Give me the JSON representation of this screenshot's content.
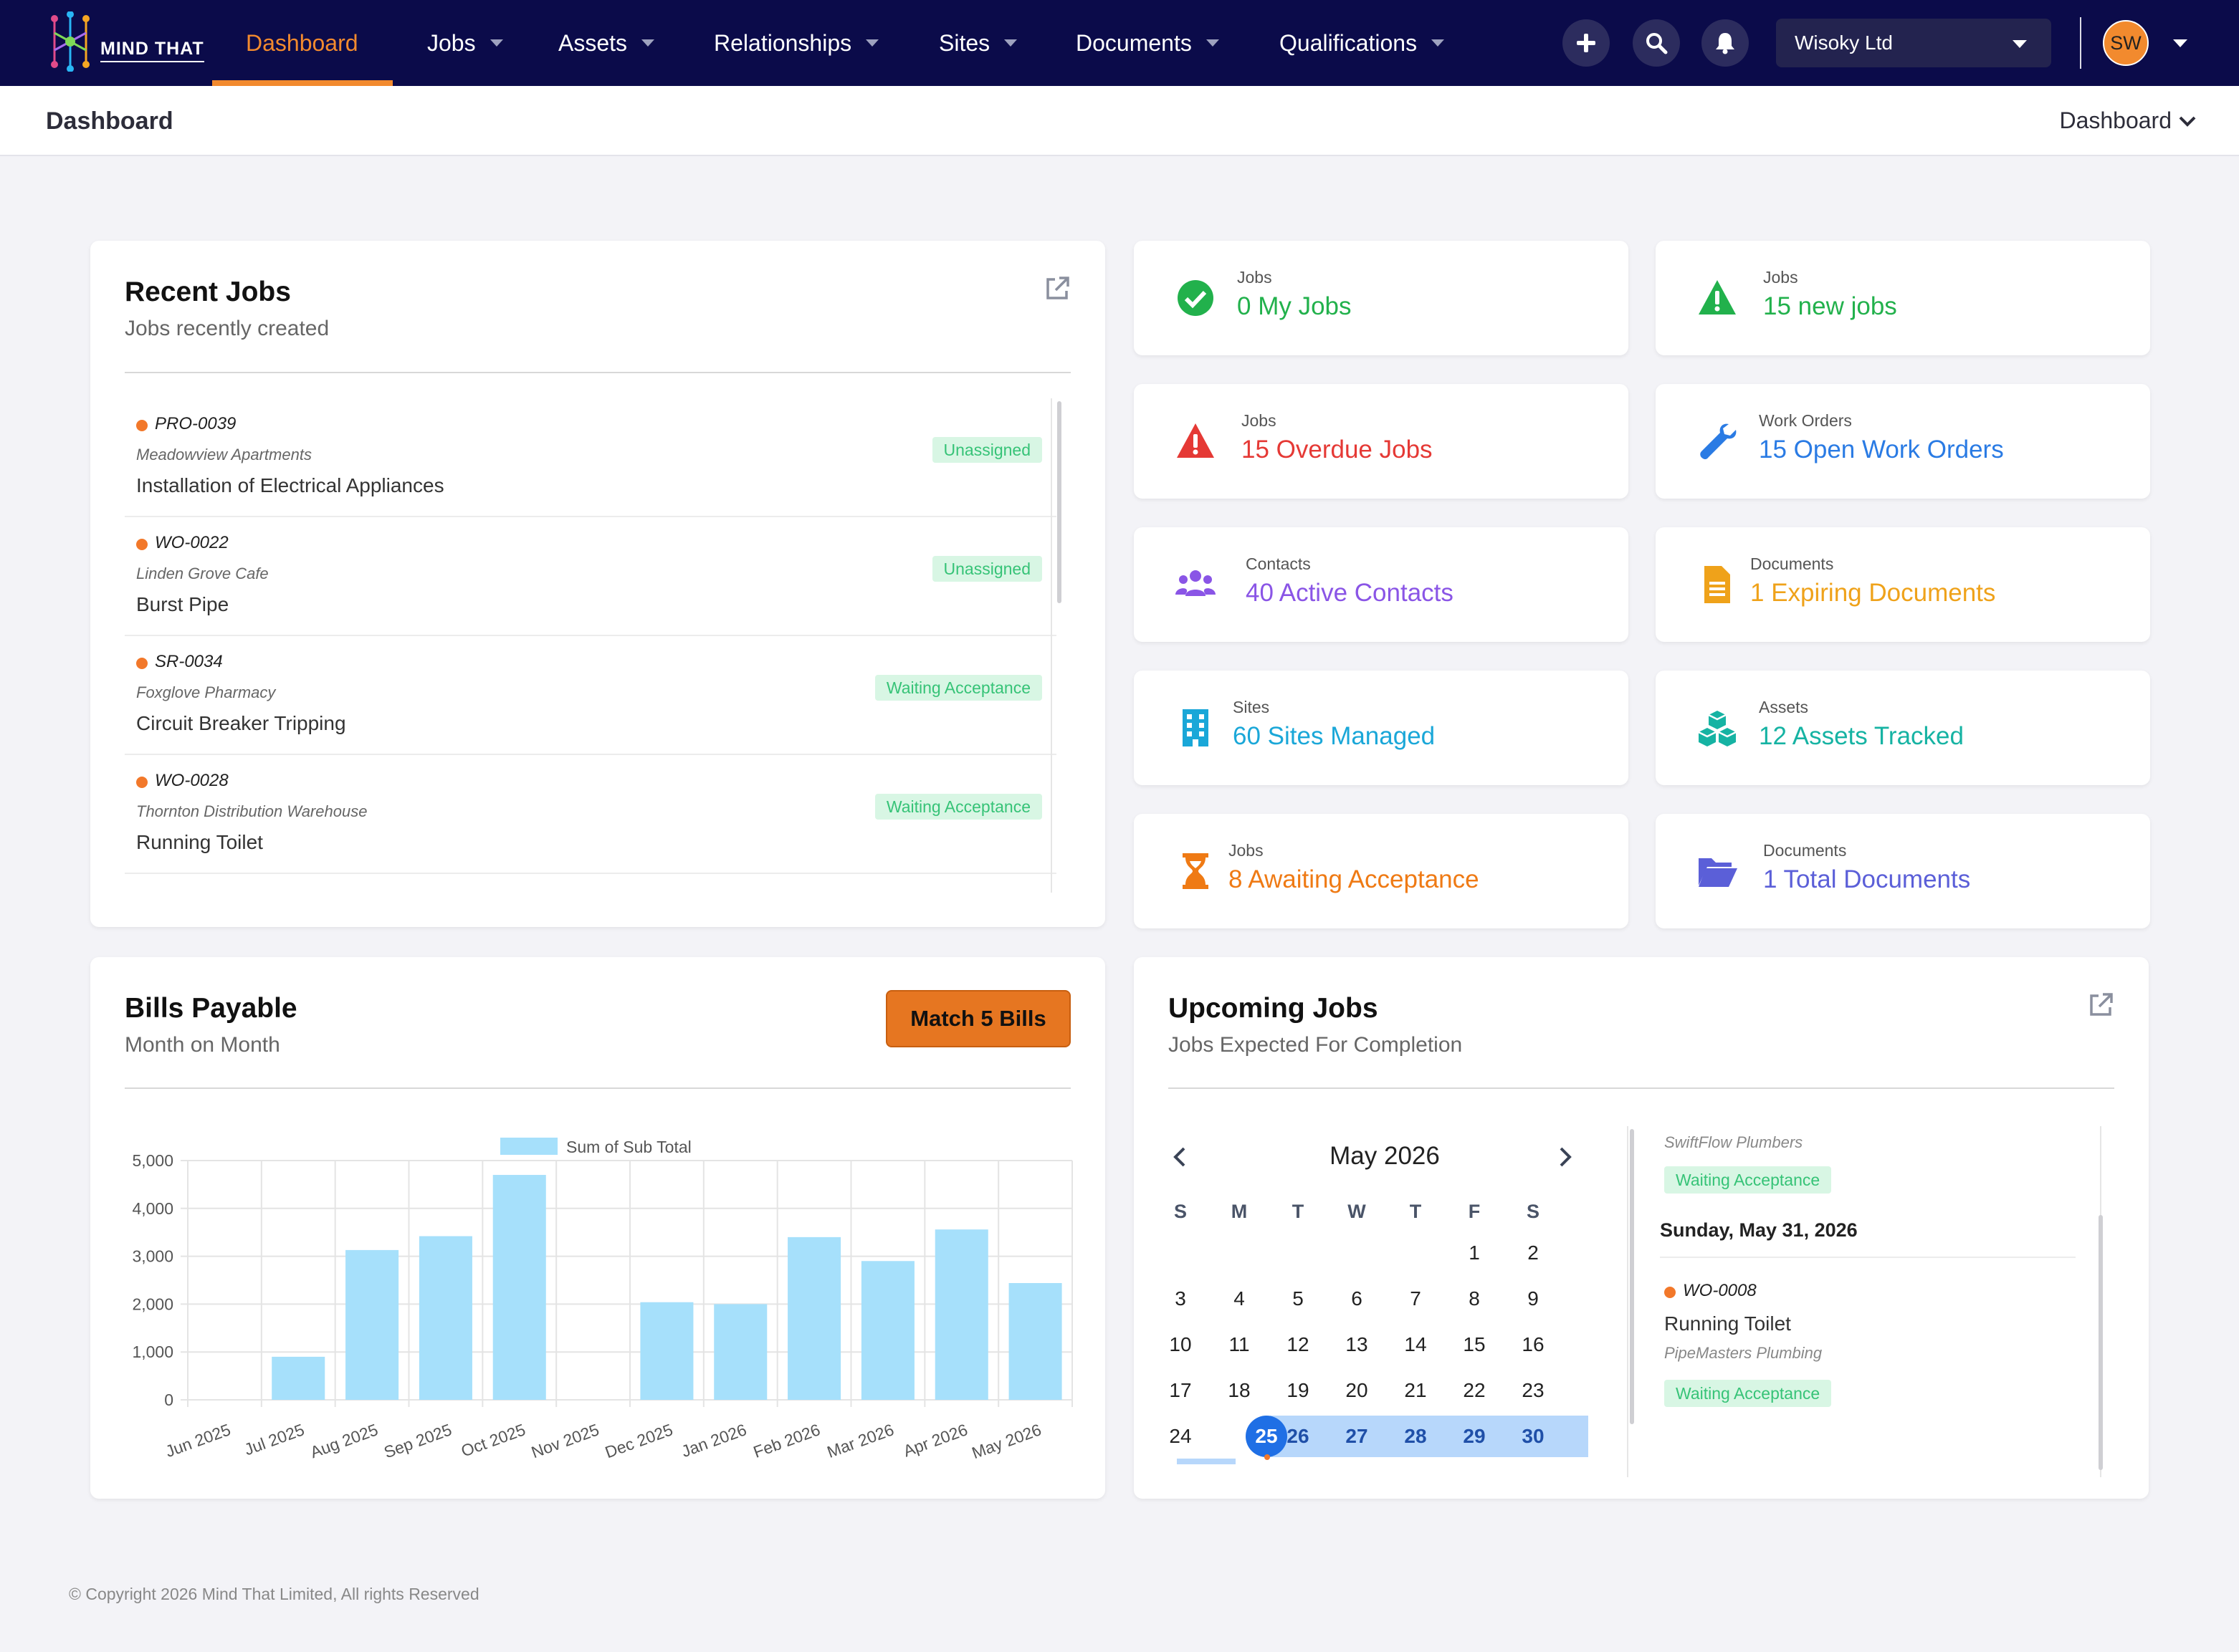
{
  "brand": {
    "name": "MIND THAT"
  },
  "nav": {
    "items": [
      {
        "label": "Dashboard",
        "active": true
      },
      {
        "label": "Jobs"
      },
      {
        "label": "Assets"
      },
      {
        "label": "Relationships"
      },
      {
        "label": "Sites"
      },
      {
        "label": "Documents"
      },
      {
        "label": "Qualifications"
      }
    ],
    "icons": [
      "plus-icon",
      "search-icon",
      "bell-icon"
    ],
    "company": "Wisoky Ltd",
    "user_initials": "SW"
  },
  "subbar": {
    "title": "Dashboard",
    "menu_label": "Dashboard"
  },
  "recent_jobs": {
    "title": "Recent Jobs",
    "subtitle": "Jobs recently created",
    "items": [
      {
        "code": "PRO-0039",
        "site": "Meadowview Apartments",
        "title": "Installation of Electrical Appliances",
        "status": "Unassigned"
      },
      {
        "code": "WO-0022",
        "site": "Linden Grove Cafe",
        "title": "Burst Pipe",
        "status": "Unassigned"
      },
      {
        "code": "SR-0034",
        "site": "Foxglove Pharmacy",
        "title": "Circuit Breaker Tripping",
        "status": "Waiting Acceptance"
      },
      {
        "code": "WO-0028",
        "site": "Thornton Distribution Warehouse",
        "title": "Running Toilet",
        "status": "Waiting Acceptance"
      }
    ]
  },
  "stats": [
    {
      "label": "Jobs",
      "value": "0 My Jobs",
      "icon": "check-circle-icon",
      "color": "#22b14c"
    },
    {
      "label": "Jobs",
      "value": "15 new jobs",
      "icon": "warning-icon",
      "color": "#22b14c"
    },
    {
      "label": "Jobs",
      "value": "15 Overdue Jobs",
      "icon": "warning-icon",
      "color": "#e53935"
    },
    {
      "label": "Work Orders",
      "value": "15 Open Work Orders",
      "icon": "wrench-icon",
      "color": "#2a7be4"
    },
    {
      "label": "Contacts",
      "value": "40 Active Contacts",
      "icon": "users-icon",
      "color": "#8a55e6"
    },
    {
      "label": "Documents",
      "value": "1 Expiring Documents",
      "icon": "document-icon",
      "color": "#efa21a"
    },
    {
      "label": "Sites",
      "value": "60 Sites Managed",
      "icon": "building-icon",
      "color": "#1aa7d8"
    },
    {
      "label": "Assets",
      "value": "12 Assets Tracked",
      "icon": "cubes-icon",
      "color": "#16b3a3"
    },
    {
      "label": "Jobs",
      "value": "8 Awaiting Acceptance",
      "icon": "hourglass-icon",
      "color": "#ef7a14"
    },
    {
      "label": "Documents",
      "value": "1 Total Documents",
      "icon": "folder-open-icon",
      "color": "#5b5fd8"
    }
  ],
  "bills": {
    "title": "Bills Payable",
    "subtitle": "Month on Month",
    "button": "Match 5 Bills"
  },
  "chart_data": {
    "type": "bar",
    "categories": [
      "Jun 2025",
      "Jul 2025",
      "Aug 2025",
      "Sep 2025",
      "Oct 2025",
      "Nov 2025",
      "Dec 2025",
      "Jan 2026",
      "Feb 2026",
      "Mar 2026",
      "Apr 2026",
      "May 2026"
    ],
    "series": [
      {
        "name": "Sum of Sub Total",
        "values": [
          0,
          900,
          3130,
          3420,
          4700,
          0,
          2040,
          2000,
          3400,
          2900,
          3560,
          2440
        ]
      }
    ],
    "yticks": [
      "5,000",
      "4,000",
      "3,000",
      "2,000",
      "1,000",
      "0"
    ],
    "ylim": [
      0,
      5000
    ],
    "grid": true,
    "legend": "top",
    "color": "#a6e0fb"
  },
  "upcoming": {
    "title": "Upcoming Jobs",
    "subtitle": "Jobs Expected For Completion",
    "calendar": {
      "month": "May 2026",
      "dow": [
        "S",
        "M",
        "T",
        "W",
        "T",
        "F",
        "S"
      ],
      "rows": [
        [
          "",
          "",
          "",
          "",
          "",
          "1",
          "2"
        ],
        [
          "3",
          "4",
          "5",
          "6",
          "7",
          "8",
          "9"
        ],
        [
          "10",
          "11",
          "12",
          "13",
          "14",
          "15",
          "16"
        ],
        [
          "17",
          "18",
          "19",
          "20",
          "21",
          "22",
          "23"
        ],
        [
          "24",
          "25",
          "26",
          "27",
          "28",
          "29",
          "30"
        ]
      ],
      "today": "25"
    },
    "list": {
      "prev_company": "SwiftFlow Plumbers",
      "prev_status": "Waiting Acceptance",
      "date_heading": "Sunday, May 31, 2026",
      "item": {
        "code": "WO-0008",
        "title": "Running Toilet",
        "company": "PipeMasters Plumbing",
        "status": "Waiting Acceptance"
      }
    }
  },
  "footer": "© Copyright 2026 Mind That Limited, All rights Reserved"
}
